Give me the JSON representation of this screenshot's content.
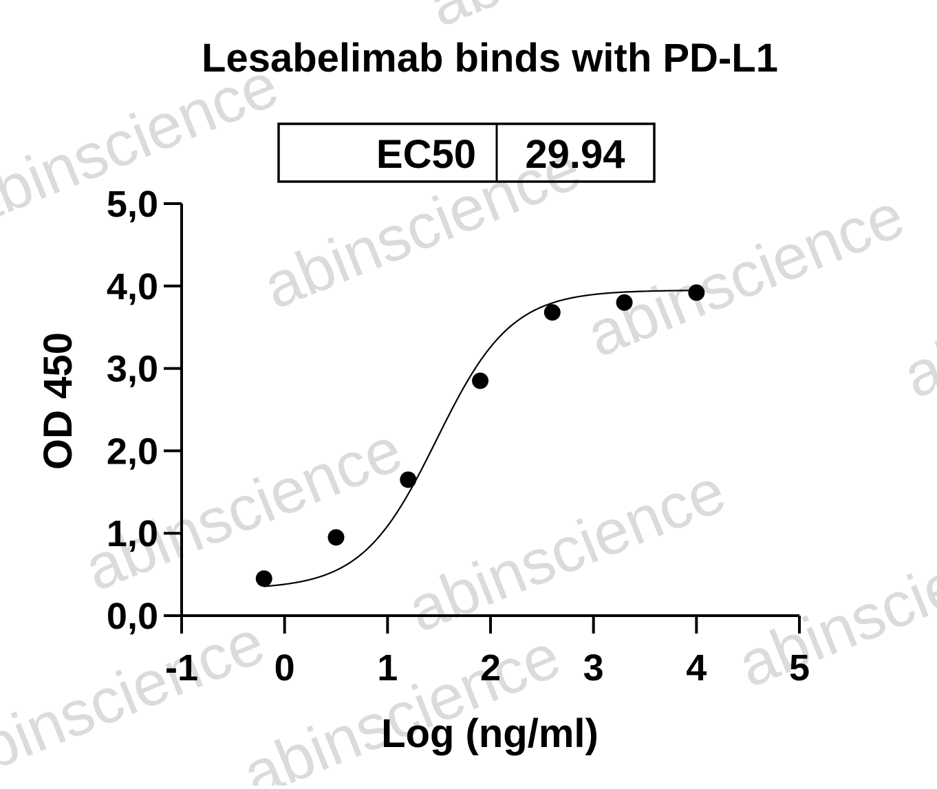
{
  "watermark": "abinscience",
  "ec50_table": {
    "label": "EC50",
    "value": "29.94"
  },
  "chart_data": {
    "type": "scatter",
    "title": "Lesabelimab binds with PD-L1",
    "xlabel": "Log (ng/ml)",
    "ylabel": "OD 450",
    "xlim": [
      -1,
      5
    ],
    "ylim": [
      0,
      5
    ],
    "x_ticks": [
      -1,
      0,
      1,
      2,
      3,
      4,
      5
    ],
    "x_tick_labels": [
      "-1",
      "0",
      "1",
      "2",
      "3",
      "4",
      "5"
    ],
    "y_ticks": [
      0,
      1,
      2,
      3,
      4,
      5
    ],
    "y_tick_labels": [
      "0,0",
      "1,0",
      "2,0",
      "3,0",
      "4,0",
      "5,0"
    ],
    "points": {
      "x": [
        -0.2,
        0.5,
        1.2,
        1.9,
        2.6,
        3.3,
        4.0
      ],
      "y": [
        0.45,
        0.95,
        1.65,
        2.85,
        3.68,
        3.8,
        3.92
      ]
    },
    "fit": {
      "model": "four-parameter logistic",
      "bottom": 0.32,
      "top": 3.95,
      "log_ec50": 1.476,
      "hill": 1.2,
      "x_range": [
        -0.2,
        4.0
      ]
    },
    "grid": false,
    "legend": "none",
    "marker_color": "#000000",
    "line_color": "#000000"
  }
}
